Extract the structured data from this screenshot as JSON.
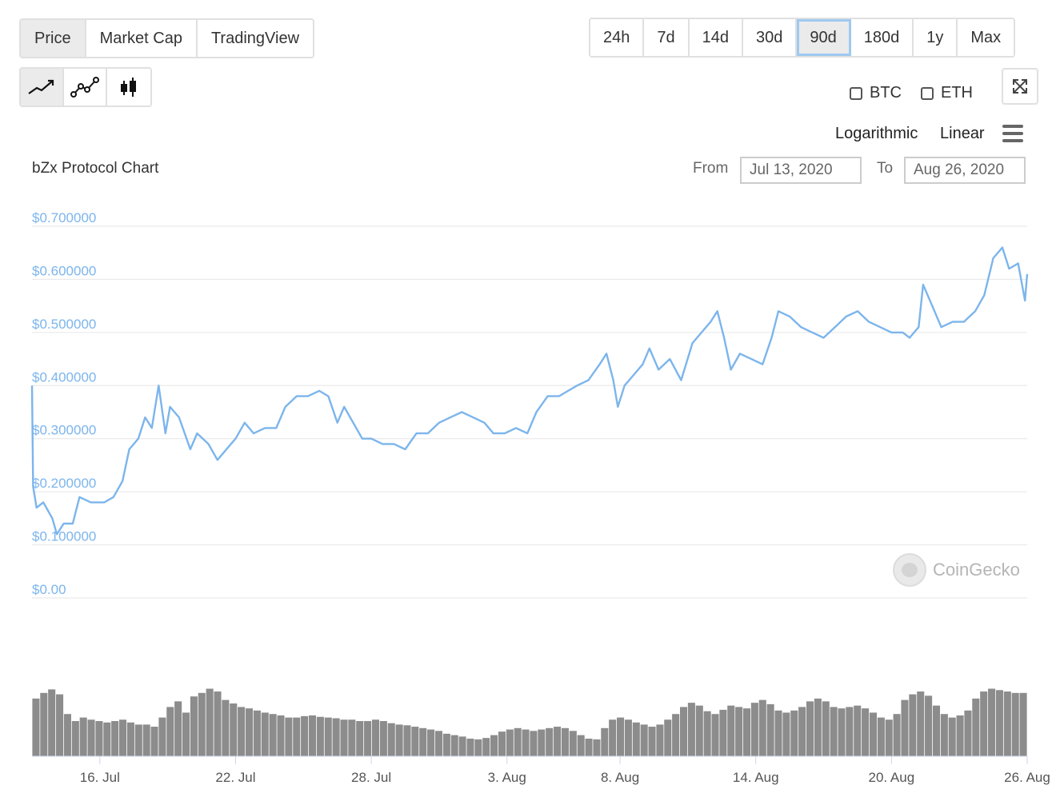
{
  "tabs": [
    {
      "label": "Price",
      "active": true
    },
    {
      "label": "Market Cap",
      "active": false
    },
    {
      "label": "TradingView",
      "active": false
    }
  ],
  "time_ranges": [
    {
      "label": "24h"
    },
    {
      "label": "7d"
    },
    {
      "label": "14d"
    },
    {
      "label": "30d"
    },
    {
      "label": "90d",
      "active": true
    },
    {
      "label": "180d"
    },
    {
      "label": "1y"
    },
    {
      "label": "Max"
    }
  ],
  "chart_types": [
    "line-chart-icon",
    "line-points-icon",
    "candlestick-icon"
  ],
  "compare": {
    "btc": "BTC",
    "eth": "ETH"
  },
  "scale": {
    "logarithmic": "Logarithmic",
    "linear": "Linear"
  },
  "title": "bZx Protocol Chart",
  "range": {
    "from_label": "From",
    "from_value": "Jul 13, 2020",
    "to_label": "To",
    "to_value": "Aug 26, 2020"
  },
  "watermark": "CoinGecko",
  "colors": {
    "line": "#7cb5ec",
    "axis_label": "#7cb5ec",
    "volume": "#8c8c8c",
    "grid": "#e6e6e6"
  },
  "chart_data": {
    "type": "line",
    "title": "bZx Protocol Chart",
    "y_ticks": [
      "$0.00",
      "$0.100000",
      "$0.200000",
      "$0.300000",
      "$0.400000",
      "$0.500000",
      "$0.600000",
      "$0.700000"
    ],
    "ylim": [
      0,
      0.7
    ],
    "x_ticks": [
      "16. Jul",
      "22. Jul",
      "28. Jul",
      "3. Aug",
      "8. Aug",
      "14. Aug",
      "20. Aug",
      "26. Aug"
    ],
    "x_tick_days": [
      3,
      9,
      15,
      21,
      26,
      32,
      38,
      44
    ],
    "xlim": [
      0,
      44
    ],
    "series": [
      {
        "values": [
          [
            0.0,
            0.4
          ],
          [
            0.05,
            0.21
          ],
          [
            0.2,
            0.17
          ],
          [
            0.5,
            0.18
          ],
          [
            0.9,
            0.15
          ],
          [
            1.1,
            0.12
          ],
          [
            1.4,
            0.14
          ],
          [
            1.8,
            0.14
          ],
          [
            2.1,
            0.19
          ],
          [
            2.6,
            0.18
          ],
          [
            3.2,
            0.18
          ],
          [
            3.6,
            0.19
          ],
          [
            4.0,
            0.22
          ],
          [
            4.3,
            0.28
          ],
          [
            4.7,
            0.3
          ],
          [
            5.0,
            0.34
          ],
          [
            5.3,
            0.32
          ],
          [
            5.6,
            0.4
          ],
          [
            5.9,
            0.31
          ],
          [
            6.1,
            0.36
          ],
          [
            6.5,
            0.34
          ],
          [
            7.0,
            0.28
          ],
          [
            7.3,
            0.31
          ],
          [
            7.8,
            0.29
          ],
          [
            8.2,
            0.26
          ],
          [
            8.6,
            0.28
          ],
          [
            9.0,
            0.3
          ],
          [
            9.4,
            0.33
          ],
          [
            9.8,
            0.31
          ],
          [
            10.3,
            0.32
          ],
          [
            10.8,
            0.32
          ],
          [
            11.2,
            0.36
          ],
          [
            11.7,
            0.38
          ],
          [
            12.2,
            0.38
          ],
          [
            12.7,
            0.39
          ],
          [
            13.1,
            0.38
          ],
          [
            13.5,
            0.33
          ],
          [
            13.8,
            0.36
          ],
          [
            14.2,
            0.33
          ],
          [
            14.6,
            0.3
          ],
          [
            15.0,
            0.3
          ],
          [
            15.5,
            0.29
          ],
          [
            16.0,
            0.29
          ],
          [
            16.5,
            0.28
          ],
          [
            17.0,
            0.31
          ],
          [
            17.5,
            0.31
          ],
          [
            18.0,
            0.33
          ],
          [
            18.5,
            0.34
          ],
          [
            19.0,
            0.35
          ],
          [
            19.5,
            0.34
          ],
          [
            20.0,
            0.33
          ],
          [
            20.4,
            0.31
          ],
          [
            20.9,
            0.31
          ],
          [
            21.4,
            0.32
          ],
          [
            21.9,
            0.31
          ],
          [
            22.3,
            0.35
          ],
          [
            22.8,
            0.38
          ],
          [
            23.3,
            0.38
          ],
          [
            23.7,
            0.39
          ],
          [
            24.1,
            0.4
          ],
          [
            24.6,
            0.41
          ],
          [
            25.1,
            0.44
          ],
          [
            25.4,
            0.46
          ],
          [
            25.7,
            0.41
          ],
          [
            25.9,
            0.36
          ],
          [
            26.2,
            0.4
          ],
          [
            26.6,
            0.42
          ],
          [
            27.0,
            0.44
          ],
          [
            27.3,
            0.47
          ],
          [
            27.7,
            0.43
          ],
          [
            28.2,
            0.45
          ],
          [
            28.7,
            0.41
          ],
          [
            29.2,
            0.48
          ],
          [
            29.6,
            0.5
          ],
          [
            30.0,
            0.52
          ],
          [
            30.3,
            0.54
          ],
          [
            30.6,
            0.49
          ],
          [
            30.9,
            0.43
          ],
          [
            31.3,
            0.46
          ],
          [
            31.8,
            0.45
          ],
          [
            32.3,
            0.44
          ],
          [
            32.7,
            0.49
          ],
          [
            33.0,
            0.54
          ],
          [
            33.5,
            0.53
          ],
          [
            34.0,
            0.51
          ],
          [
            34.5,
            0.5
          ],
          [
            35.0,
            0.49
          ],
          [
            35.5,
            0.51
          ],
          [
            36.0,
            0.53
          ],
          [
            36.5,
            0.54
          ],
          [
            37.0,
            0.52
          ],
          [
            37.5,
            0.51
          ],
          [
            38.0,
            0.5
          ],
          [
            38.5,
            0.5
          ],
          [
            38.8,
            0.49
          ],
          [
            39.2,
            0.51
          ],
          [
            39.4,
            0.59
          ],
          [
            39.8,
            0.55
          ],
          [
            40.2,
            0.51
          ],
          [
            40.7,
            0.52
          ],
          [
            41.2,
            0.52
          ],
          [
            41.7,
            0.54
          ],
          [
            42.1,
            0.57
          ],
          [
            42.5,
            0.64
          ],
          [
            42.9,
            0.66
          ],
          [
            43.2,
            0.62
          ],
          [
            43.6,
            0.63
          ],
          [
            43.9,
            0.56
          ],
          [
            44.0,
            0.61
          ]
        ]
      }
    ],
    "volume": [
      0.82,
      0.9,
      0.95,
      0.88,
      0.6,
      0.5,
      0.55,
      0.52,
      0.5,
      0.48,
      0.5,
      0.52,
      0.48,
      0.45,
      0.45,
      0.42,
      0.55,
      0.7,
      0.78,
      0.62,
      0.85,
      0.9,
      0.96,
      0.92,
      0.8,
      0.75,
      0.7,
      0.68,
      0.65,
      0.62,
      0.6,
      0.58,
      0.55,
      0.55,
      0.57,
      0.58,
      0.56,
      0.55,
      0.54,
      0.52,
      0.52,
      0.5,
      0.5,
      0.52,
      0.5,
      0.47,
      0.45,
      0.44,
      0.42,
      0.4,
      0.38,
      0.36,
      0.32,
      0.3,
      0.28,
      0.25,
      0.24,
      0.26,
      0.3,
      0.35,
      0.38,
      0.4,
      0.38,
      0.36,
      0.38,
      0.4,
      0.42,
      0.4,
      0.36,
      0.3,
      0.25,
      0.24,
      0.4,
      0.52,
      0.55,
      0.52,
      0.48,
      0.45,
      0.42,
      0.45,
      0.52,
      0.6,
      0.7,
      0.76,
      0.72,
      0.64,
      0.6,
      0.66,
      0.72,
      0.7,
      0.68,
      0.76,
      0.8,
      0.74,
      0.65,
      0.62,
      0.65,
      0.7,
      0.78,
      0.82,
      0.78,
      0.7,
      0.68,
      0.7,
      0.72,
      0.68,
      0.62,
      0.55,
      0.52,
      0.6,
      0.8,
      0.88,
      0.92,
      0.86,
      0.72,
      0.6,
      0.55,
      0.58,
      0.65,
      0.82,
      0.92,
      0.96,
      0.94,
      0.92,
      0.9,
      0.9
    ]
  }
}
